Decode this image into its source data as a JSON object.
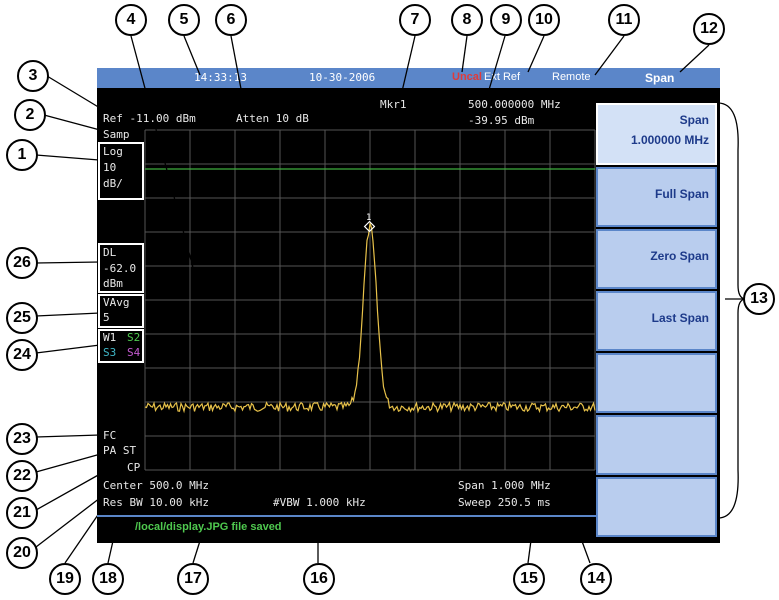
{
  "topbar": {
    "time": "14:33:13",
    "date": "10-30-2006",
    "uncal": "Uncal",
    "extref": "Ext Ref",
    "remote": "Remote",
    "menu_title": "Span"
  },
  "readouts": {
    "ref": "Ref -11.00 dBm",
    "atten": "Atten 10 dB",
    "mkr_label": "Mkr1",
    "mkr_freq": "500.000000 MHz",
    "mkr_amp": "-39.95 dBm",
    "detector": "Samp",
    "scale_line1": "Log",
    "scale_line2": "10",
    "scale_line3": "dB/",
    "dl_line1": "DL",
    "dl_line2": "-62.0",
    "dl_line3": "dBm",
    "avg_line1": "VAvg",
    "avg_line2": "5",
    "trace_w1": "W1",
    "trace_s2": "S2",
    "trace_s3": "S3",
    "trace_s4": "S4",
    "fc": "FC",
    "pa_st": "PA ST",
    "cp": "CP",
    "center": "Center 500.0 MHz",
    "res_bw": "Res BW 10.00 kHz",
    "vbw": "#VBW 1.000 kHz",
    "span": "Span 1.000 MHz",
    "sweep": "Sweep 250.5 ms",
    "marker_num": "1"
  },
  "softkeys": [
    {
      "line1": "Span",
      "line2": "1.000000 MHz"
    },
    {
      "line1": "Full Span",
      "line2": ""
    },
    {
      "line1": "Zero Span",
      "line2": ""
    },
    {
      "line1": "Last Span",
      "line2": ""
    },
    {
      "line1": "",
      "line2": ""
    },
    {
      "line1": "",
      "line2": ""
    },
    {
      "line1": "",
      "line2": ""
    }
  ],
  "status_message": "/local/display.JPG file saved",
  "callouts": [
    "1",
    "2",
    "3",
    "4",
    "5",
    "6",
    "7",
    "8",
    "9",
    "10",
    "11",
    "12",
    "13",
    "14",
    "15",
    "16",
    "17",
    "18",
    "19",
    "20",
    "21",
    "22",
    "23",
    "24",
    "25",
    "26"
  ],
  "colors": {
    "trace": "#e8c24a",
    "display_line": "#3fae3f",
    "grid": "#555555",
    "uncal": "#e03a3a",
    "s2": "#4fc94f",
    "s3": "#3fb8c8",
    "s4": "#c45bd0"
  }
}
